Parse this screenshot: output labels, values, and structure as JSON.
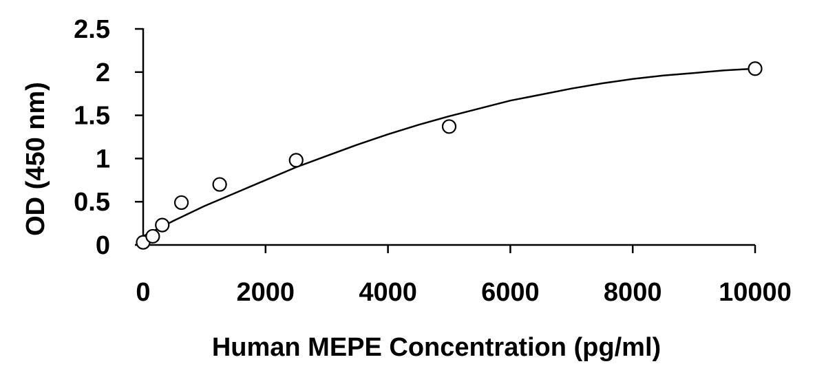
{
  "chart_data": {
    "type": "scatter",
    "title": "",
    "xlabel": "Human MEPE Concentration (pg/ml)",
    "ylabel": "OD (450 nm)",
    "xlim": [
      0,
      10000
    ],
    "ylim": [
      0,
      2.5
    ],
    "x_ticks": [
      0,
      2000,
      4000,
      6000,
      8000,
      10000
    ],
    "x_tick_labels": [
      "0",
      "2000",
      "4000",
      "6000",
      "8000",
      "10000"
    ],
    "y_ticks": [
      0,
      0.5,
      1,
      1.5,
      2,
      2.5
    ],
    "y_tick_labels": [
      "0",
      "0.5",
      "1",
      "1.5",
      "2",
      "2.5"
    ],
    "grid": false,
    "legend": "none",
    "series": [
      {
        "marker": "open-circle",
        "points": [
          {
            "x": 0,
            "y": 0.03
          },
          {
            "x": 156,
            "y": 0.1
          },
          {
            "x": 312,
            "y": 0.23
          },
          {
            "x": 625,
            "y": 0.49
          },
          {
            "x": 1250,
            "y": 0.7
          },
          {
            "x": 2500,
            "y": 0.98
          },
          {
            "x": 5000,
            "y": 1.37
          },
          {
            "x": 10000,
            "y": 2.04
          }
        ]
      }
    ],
    "fit_curve": {
      "points": [
        {
          "x": 0,
          "y": 0.1
        },
        {
          "x": 500,
          "y": 0.28
        },
        {
          "x": 1000,
          "y": 0.45
        },
        {
          "x": 1500,
          "y": 0.6
        },
        {
          "x": 2000,
          "y": 0.75
        },
        {
          "x": 2500,
          "y": 0.9
        },
        {
          "x": 3000,
          "y": 1.03
        },
        {
          "x": 3500,
          "y": 1.16
        },
        {
          "x": 4000,
          "y": 1.28
        },
        {
          "x": 4500,
          "y": 1.39
        },
        {
          "x": 5000,
          "y": 1.49
        },
        {
          "x": 5500,
          "y": 1.58
        },
        {
          "x": 6000,
          "y": 1.67
        },
        {
          "x": 6500,
          "y": 1.74
        },
        {
          "x": 7000,
          "y": 1.81
        },
        {
          "x": 7500,
          "y": 1.87
        },
        {
          "x": 8000,
          "y": 1.92
        },
        {
          "x": 8500,
          "y": 1.96
        },
        {
          "x": 9000,
          "y": 1.99
        },
        {
          "x": 9500,
          "y": 2.02
        },
        {
          "x": 10000,
          "y": 2.04
        }
      ]
    }
  }
}
